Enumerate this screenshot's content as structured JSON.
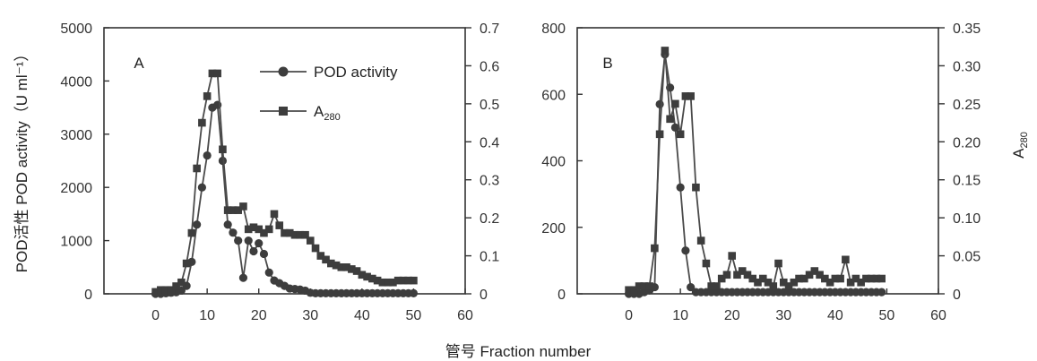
{
  "figure": {
    "ylabel_left": "POD活性 POD activity（U ml⁻¹）",
    "xlabel": "管号 Fraction number",
    "ylabel_right_B": "A",
    "ylabel_right_B_sub": "280"
  },
  "chart_data": [
    {
      "type": "line",
      "panel_label": "A",
      "xlim": [
        -10,
        60
      ],
      "x_ticks": [
        0,
        10,
        20,
        30,
        40,
        50,
        60
      ],
      "ylim_left": [
        0,
        5000
      ],
      "y_ticks_left": [
        0,
        1000,
        2000,
        3000,
        4000,
        5000
      ],
      "ylim_right": [
        0,
        0.7
      ],
      "y_ticks_right": [
        0,
        0.1,
        0.2,
        0.3,
        0.4,
        0.5,
        0.6,
        0.7
      ],
      "legend": {
        "position": "top-right",
        "entries": [
          {
            "label": "POD activity",
            "marker": "circle"
          },
          {
            "label": "A",
            "sub": "280",
            "marker": "square"
          }
        ]
      },
      "series": [
        {
          "name": "POD activity",
          "axis": "left",
          "marker": "circle",
          "x": [
            0,
            1,
            2,
            3,
            4,
            5,
            6,
            7,
            8,
            9,
            10,
            11,
            12,
            13,
            14,
            15,
            16,
            17,
            18,
            19,
            20,
            21,
            22,
            23,
            24,
            25,
            26,
            27,
            28,
            29,
            30,
            31,
            32,
            33,
            34,
            35,
            36,
            37,
            38,
            39,
            40,
            41,
            42,
            43,
            44,
            45,
            46,
            47,
            48,
            49,
            50
          ],
          "y": [
            0,
            0,
            10,
            20,
            30,
            60,
            150,
            600,
            1300,
            2000,
            2600,
            3500,
            3550,
            2500,
            1300,
            1150,
            1000,
            300,
            1000,
            800,
            950,
            750,
            400,
            250,
            200,
            150,
            100,
            90,
            80,
            60,
            20,
            10,
            10,
            10,
            10,
            10,
            10,
            10,
            10,
            10,
            10,
            10,
            10,
            10,
            10,
            10,
            10,
            10,
            10,
            10,
            10
          ]
        },
        {
          "name": "A",
          "axis": "right",
          "marker": "square",
          "x": [
            0,
            1,
            2,
            3,
            4,
            5,
            6,
            7,
            8,
            9,
            10,
            11,
            12,
            13,
            14,
            15,
            16,
            17,
            18,
            19,
            20,
            21,
            22,
            23,
            24,
            25,
            26,
            27,
            28,
            29,
            30,
            31,
            32,
            33,
            34,
            35,
            36,
            37,
            38,
            39,
            40,
            41,
            42,
            43,
            44,
            45,
            46,
            47,
            48,
            49,
            50
          ],
          "y": [
            0.005,
            0.01,
            0.01,
            0.01,
            0.02,
            0.03,
            0.08,
            0.16,
            0.33,
            0.45,
            0.52,
            0.58,
            0.58,
            0.38,
            0.22,
            0.22,
            0.22,
            0.23,
            0.17,
            0.175,
            0.17,
            0.16,
            0.17,
            0.21,
            0.18,
            0.16,
            0.16,
            0.155,
            0.155,
            0.155,
            0.14,
            0.12,
            0.1,
            0.09,
            0.08,
            0.075,
            0.07,
            0.07,
            0.065,
            0.06,
            0.05,
            0.045,
            0.04,
            0.035,
            0.03,
            0.03,
            0.03,
            0.035,
            0.035,
            0.035,
            0.035
          ]
        }
      ]
    },
    {
      "type": "line",
      "panel_label": "B",
      "xlim": [
        -10,
        60
      ],
      "x_ticks": [
        0,
        10,
        20,
        30,
        40,
        50,
        60
      ],
      "ylim_left": [
        0,
        800
      ],
      "y_ticks_left": [
        0,
        200,
        400,
        600,
        800
      ],
      "ylim_right": [
        0,
        0.35
      ],
      "y_ticks_right": [
        0,
        0.05,
        0.1,
        0.15,
        0.2,
        0.25,
        0.3,
        0.35
      ],
      "series": [
        {
          "name": "POD activity",
          "axis": "left",
          "marker": "circle",
          "x": [
            0,
            1,
            2,
            3,
            4,
            5,
            6,
            7,
            8,
            9,
            10,
            11,
            12,
            13,
            14,
            15,
            16,
            17,
            18,
            19,
            20,
            21,
            22,
            23,
            24,
            25,
            26,
            27,
            28,
            29,
            30,
            31,
            32,
            33,
            34,
            35,
            36,
            37,
            38,
            39,
            40,
            41,
            42,
            43,
            44,
            45,
            46,
            47,
            48,
            49
          ],
          "y": [
            0,
            0,
            0,
            5,
            10,
            20,
            570,
            720,
            620,
            500,
            320,
            130,
            20,
            5,
            5,
            5,
            5,
            5,
            5,
            5,
            5,
            5,
            5,
            5,
            5,
            5,
            5,
            5,
            5,
            5,
            5,
            5,
            5,
            5,
            5,
            5,
            5,
            5,
            5,
            5,
            5,
            5,
            5,
            5,
            5,
            5,
            5,
            5,
            5,
            5
          ]
        },
        {
          "name": "A",
          "axis": "right",
          "marker": "square",
          "x": [
            0,
            1,
            2,
            3,
            4,
            5,
            6,
            7,
            8,
            9,
            10,
            11,
            12,
            13,
            14,
            15,
            16,
            17,
            18,
            19,
            20,
            21,
            22,
            23,
            24,
            25,
            26,
            27,
            28,
            29,
            30,
            31,
            32,
            33,
            34,
            35,
            36,
            37,
            38,
            39,
            40,
            41,
            42,
            43,
            44,
            45,
            46,
            47,
            48,
            49
          ],
          "y": [
            0.005,
            0.005,
            0.01,
            0.01,
            0.01,
            0.06,
            0.21,
            0.32,
            0.23,
            0.25,
            0.21,
            0.26,
            0.26,
            0.14,
            0.07,
            0.04,
            0.01,
            0.01,
            0.02,
            0.025,
            0.05,
            0.025,
            0.03,
            0.025,
            0.02,
            0.015,
            0.02,
            0.015,
            0.01,
            0.04,
            0.015,
            0.01,
            0.015,
            0.02,
            0.02,
            0.025,
            0.03,
            0.025,
            0.02,
            0.015,
            0.02,
            0.02,
            0.045,
            0.015,
            0.02,
            0.015,
            0.02,
            0.02,
            0.02,
            0.02
          ]
        }
      ]
    }
  ]
}
